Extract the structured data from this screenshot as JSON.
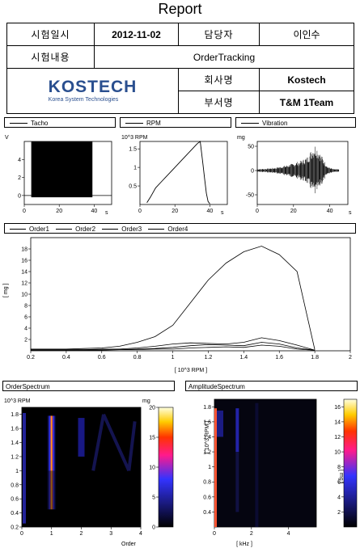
{
  "report": {
    "title": "Report",
    "header": {
      "test_date_label": "시험일시",
      "test_date_value": "2012-11-02",
      "manager_label": "담당자",
      "manager_value": "이인수",
      "test_content_label": "시험내용",
      "test_content_value": "OrderTracking",
      "company_label": "회사명",
      "company_value": "Kostech",
      "department_label": "부서명",
      "department_value": "T&M 1Team",
      "logo_text": "KOSTECH",
      "logo_subtext": "Korea System Technologies"
    }
  },
  "panels": {
    "tacho": {
      "legend": "Tacho",
      "ylabel": "V",
      "xlabel": "s"
    },
    "rpm": {
      "legend": "RPM",
      "ylabel": "10^3 RPM",
      "xlabel": "s"
    },
    "vibration": {
      "legend": "Vibration",
      "ylabel": "mg",
      "xlabel": "s"
    },
    "order_legend": [
      "Order1",
      "Order2",
      "Order3",
      "Order4"
    ],
    "order_spectrum": {
      "title": "OrderSpectrum",
      "ylabel": "10^3 RPM",
      "xlabel": "Order",
      "colorbar_label": "mg"
    },
    "amplitude_spectrum": {
      "title": "AmplitudeSpectrum",
      "ylabel": "[ 10^3 RPM ]",
      "xlabel": "[ kHz ]",
      "colorbar_label": "[ mg ]"
    }
  },
  "chart_data": [
    {
      "type": "area",
      "name": "Tacho",
      "xlabel": "s",
      "ylabel": "V",
      "xlim": [
        0,
        50
      ],
      "ylim": [
        -1,
        6
      ],
      "xticks": [
        0,
        20,
        40
      ],
      "yticks": [
        0,
        2,
        4
      ],
      "signal": {
        "x_start": 4,
        "x_end": 39,
        "y_min": -0.2,
        "y_max": 6
      }
    },
    {
      "type": "line",
      "name": "RPM",
      "xlabel": "s",
      "ylabel": "10^3 RPM",
      "xlim": [
        0,
        50
      ],
      "ylim": [
        0,
        1.7
      ],
      "xticks": [
        0,
        20,
        40
      ],
      "yticks": [
        0.5,
        1,
        1.5
      ],
      "x": [
        4,
        6,
        9,
        12,
        15,
        18,
        21,
        24,
        27,
        30,
        32,
        33,
        34,
        34.5,
        35,
        36,
        37,
        38,
        39,
        40
      ],
      "y": [
        0.05,
        0.2,
        0.45,
        0.6,
        0.75,
        0.9,
        1.05,
        1.2,
        1.35,
        1.5,
        1.6,
        1.65,
        1.68,
        1.7,
        1.5,
        1.1,
        0.7,
        0.3,
        0.08,
        0.02
      ]
    },
    {
      "type": "area",
      "name": "Vibration",
      "xlabel": "s",
      "ylabel": "mg",
      "xlim": [
        0,
        50
      ],
      "ylim": [
        -70,
        60
      ],
      "xticks": [
        0,
        20,
        40
      ],
      "yticks": [
        -50,
        0,
        50
      ],
      "envelope": {
        "x": [
          0,
          5,
          10,
          15,
          20,
          25,
          28,
          30,
          32,
          33,
          35,
          37,
          39,
          42,
          50
        ],
        "amp": [
          3,
          4,
          6,
          10,
          15,
          22,
          30,
          45,
          55,
          50,
          35,
          20,
          8,
          3,
          2
        ]
      }
    },
    {
      "type": "line",
      "name": "Order Tracking",
      "xlabel": "[ 10^3 RPM ]",
      "ylabel": "[ mg ]",
      "xlim": [
        0.2,
        2.0
      ],
      "ylim": [
        0,
        20
      ],
      "xticks": [
        0.2,
        0.4,
        0.6,
        0.8,
        1.0,
        1.2,
        1.4,
        1.6,
        1.8,
        2.0
      ],
      "yticks": [
        2,
        4,
        6,
        8,
        10,
        12,
        14,
        16,
        18
      ],
      "x": [
        0.2,
        0.3,
        0.4,
        0.5,
        0.6,
        0.7,
        0.8,
        0.9,
        1.0,
        1.1,
        1.2,
        1.3,
        1.4,
        1.5,
        1.6,
        1.7,
        1.8
      ],
      "series": [
        {
          "name": "Order1",
          "values": [
            0.3,
            0.3,
            0.3,
            0.4,
            0.5,
            0.8,
            1.5,
            2.5,
            4.5,
            8.5,
            12.5,
            15.5,
            17.5,
            18.5,
            17.0,
            14.0,
            0.2
          ]
        },
        {
          "name": "Order2",
          "values": [
            0.2,
            0.2,
            0.2,
            0.2,
            0.3,
            0.3,
            0.5,
            0.8,
            1.2,
            1.4,
            1.3,
            1.2,
            1.5,
            2.3,
            1.8,
            1.0,
            0.1
          ]
        },
        {
          "name": "Order3",
          "values": [
            0.2,
            0.2,
            0.2,
            0.2,
            0.2,
            0.2,
            0.3,
            0.4,
            0.6,
            0.9,
            1.1,
            1.0,
            0.9,
            1.5,
            1.2,
            0.5,
            0.1
          ]
        },
        {
          "name": "Order4",
          "values": [
            0.1,
            0.1,
            0.1,
            0.1,
            0.1,
            0.2,
            0.2,
            0.3,
            0.3,
            0.5,
            0.6,
            0.7,
            0.6,
            1.0,
            0.8,
            0.3,
            0.1
          ]
        }
      ]
    },
    {
      "type": "heatmap",
      "name": "OrderSpectrum",
      "xlabel": "Order",
      "ylabel": "10^3 RPM",
      "xlim": [
        0,
        4
      ],
      "ylim": [
        0.2,
        1.9
      ],
      "xticks": [
        0,
        1,
        2,
        3,
        4
      ],
      "yticks": [
        0.2,
        0.4,
        0.6,
        0.8,
        1.0,
        1.2,
        1.4,
        1.6,
        1.8
      ],
      "colorbar": {
        "min": 0,
        "max": 20,
        "ticks": [
          0,
          5,
          10,
          15,
          20
        ]
      }
    },
    {
      "type": "heatmap",
      "name": "AmplitudeSpectrum",
      "xlabel": "[ kHz ]",
      "ylabel": "[ 10^3 RPM ]",
      "xlim": [
        0,
        5.5
      ],
      "ylim": [
        0.2,
        1.9
      ],
      "xticks": [
        0,
        2,
        4
      ],
      "yticks": [
        0.4,
        0.6,
        0.8,
        1.0,
        1.2,
        1.4,
        1.6,
        1.8
      ],
      "colorbar": {
        "min": 0,
        "max": 17,
        "ticks": [
          2,
          4,
          6,
          8,
          10,
          12,
          14,
          16
        ]
      }
    }
  ]
}
